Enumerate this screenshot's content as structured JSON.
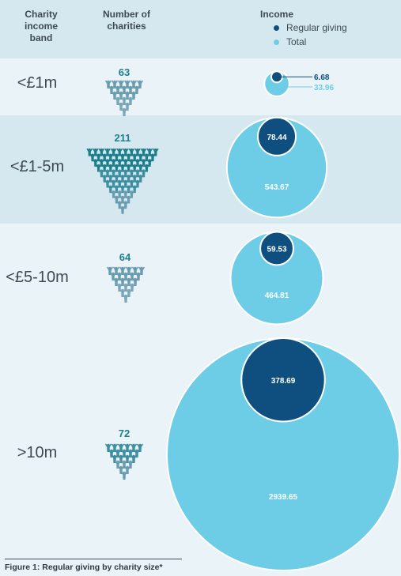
{
  "header": {
    "col1": [
      "Charity",
      "income",
      "band"
    ],
    "col2": [
      "Number of",
      "charities"
    ],
    "col3": "Income"
  },
  "legend": [
    {
      "label": "Regular giving",
      "color": "#0e4f80"
    },
    {
      "label": "Total",
      "color": "#6ecde6"
    }
  ],
  "chart_data": {
    "type": "bubble",
    "title": "",
    "categories": [
      "<£1m",
      "<£1-5m",
      "<£5-10m",
      ">10m"
    ],
    "number_of_charities": [
      63,
      211,
      64,
      72
    ],
    "series": [
      {
        "name": "Regular giving",
        "values": [
          6.68,
          78.44,
          59.53,
          378.69
        ]
      },
      {
        "name": "Total",
        "values": [
          33.96,
          543.67,
          464.81,
          2939.65
        ]
      }
    ],
    "value_labels": {
      "regular": [
        "6.68",
        "78.44",
        "59.53",
        "378.69"
      ],
      "total": [
        "33.96",
        "543.67",
        "464.81",
        "2939.65"
      ]
    }
  },
  "caption": "Figure 1: Regular giving by charity size*"
}
